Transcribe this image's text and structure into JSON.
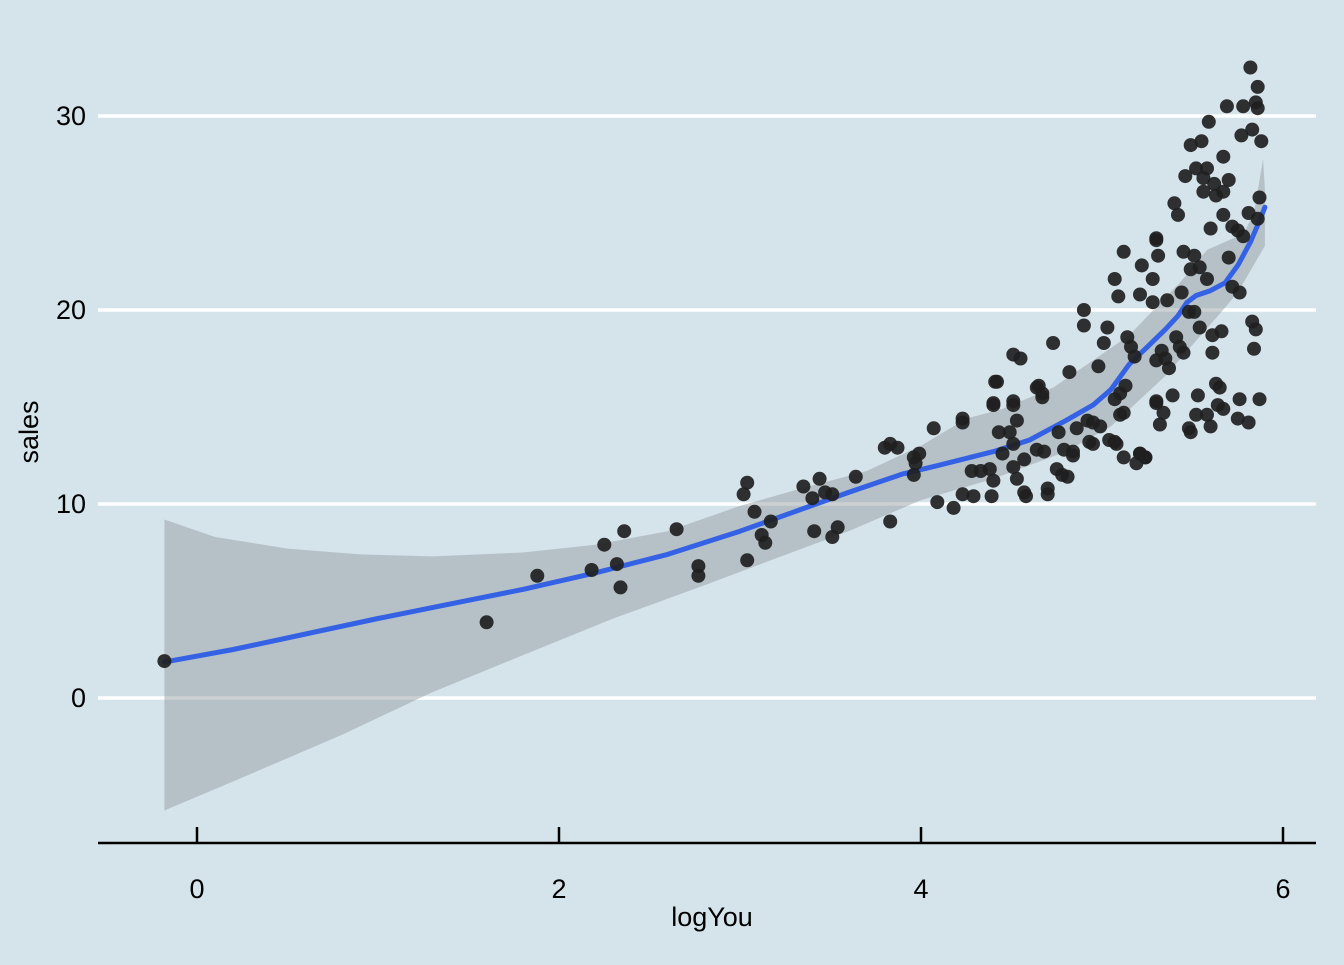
{
  "chart_data": {
    "type": "scatter",
    "title": "",
    "xlabel": "logYou",
    "ylabel": "sales",
    "x_ticks": [
      0,
      2,
      4,
      6
    ],
    "y_ticks": [
      0,
      10,
      20,
      30
    ],
    "xlim": [
      -0.55,
      6.18
    ],
    "ylim": [
      -7.5,
      34.95
    ],
    "grid": "horizontal-white",
    "legend": "none",
    "colors": {
      "background": "#d5e4eb",
      "gridline": "#ffffff",
      "ribbon": "rgba(145,150,155,0.45)",
      "smooth_line": "#3562e4",
      "point": "#1f1f1f",
      "axis": "#000000"
    },
    "smooth_line": [
      [
        -0.18,
        1.85
      ],
      [
        0.2,
        2.5
      ],
      [
        0.6,
        3.3
      ],
      [
        1.0,
        4.1
      ],
      [
        1.4,
        4.85
      ],
      [
        1.8,
        5.6
      ],
      [
        2.2,
        6.45
      ],
      [
        2.6,
        7.4
      ],
      [
        3.0,
        8.6
      ],
      [
        3.3,
        9.6
      ],
      [
        3.6,
        10.6
      ],
      [
        3.9,
        11.55
      ],
      [
        4.1,
        12.0
      ],
      [
        4.4,
        12.7
      ],
      [
        4.6,
        13.3
      ],
      [
        4.8,
        14.3
      ],
      [
        4.95,
        15.1
      ],
      [
        5.05,
        15.9
      ],
      [
        5.15,
        17.2
      ],
      [
        5.25,
        18.1
      ],
      [
        5.35,
        19.0
      ],
      [
        5.42,
        19.7
      ],
      [
        5.47,
        20.4
      ],
      [
        5.52,
        20.75
      ],
      [
        5.6,
        21.0
      ],
      [
        5.68,
        21.4
      ],
      [
        5.75,
        22.3
      ],
      [
        5.82,
        23.5
      ],
      [
        5.87,
        24.6
      ],
      [
        5.9,
        25.3
      ]
    ],
    "ribbon_upper": [
      [
        -0.18,
        9.2
      ],
      [
        0.1,
        8.3
      ],
      [
        0.5,
        7.7
      ],
      [
        0.9,
        7.4
      ],
      [
        1.3,
        7.3
      ],
      [
        1.8,
        7.5
      ],
      [
        2.2,
        7.9
      ],
      [
        2.6,
        8.6
      ],
      [
        3.0,
        9.9
      ],
      [
        3.3,
        10.7
      ],
      [
        3.7,
        11.7
      ],
      [
        4.0,
        13.0
      ],
      [
        4.25,
        14.4
      ],
      [
        4.45,
        14.9
      ],
      [
        4.73,
        16.0
      ],
      [
        4.95,
        17.4
      ],
      [
        5.15,
        18.7
      ],
      [
        5.43,
        21.4
      ],
      [
        5.58,
        23.1
      ],
      [
        5.7,
        23.6
      ],
      [
        5.78,
        23.9
      ],
      [
        5.84,
        25.0
      ],
      [
        5.89,
        27.8
      ],
      [
        5.9,
        26.2
      ]
    ],
    "ribbon_lower": [
      [
        -0.18,
        -5.8
      ],
      [
        0.3,
        -3.9
      ],
      [
        0.8,
        -1.9
      ],
      [
        1.3,
        0.3
      ],
      [
        1.8,
        2.2
      ],
      [
        2.3,
        4.1
      ],
      [
        2.8,
        5.8
      ],
      [
        3.2,
        7.2
      ],
      [
        3.6,
        8.6
      ],
      [
        4.0,
        10.2
      ],
      [
        4.4,
        11.3
      ],
      [
        4.8,
        12.7
      ],
      [
        5.05,
        14.0
      ],
      [
        5.2,
        15.3
      ],
      [
        5.35,
        16.6
      ],
      [
        5.5,
        18.2
      ],
      [
        5.65,
        19.8
      ],
      [
        5.75,
        20.9
      ],
      [
        5.85,
        22.5
      ],
      [
        5.9,
        23.3
      ]
    ],
    "points": [
      [
        -0.18,
        1.9
      ],
      [
        1.6,
        3.9
      ],
      [
        1.88,
        6.3
      ],
      [
        2.18,
        6.6
      ],
      [
        2.25,
        7.9
      ],
      [
        2.32,
        6.9
      ],
      [
        2.36,
        8.6
      ],
      [
        2.34,
        5.7
      ],
      [
        2.65,
        8.7
      ],
      [
        2.77,
        6.8
      ],
      [
        2.77,
        6.3
      ],
      [
        3.04,
        11.1
      ],
      [
        3.02,
        10.5
      ],
      [
        3.08,
        9.6
      ],
      [
        3.04,
        7.1
      ],
      [
        3.12,
        8.4
      ],
      [
        3.14,
        8.0
      ],
      [
        3.17,
        9.1
      ],
      [
        3.35,
        10.9
      ],
      [
        3.44,
        11.3
      ],
      [
        3.4,
        10.3
      ],
      [
        3.47,
        10.6
      ],
      [
        3.51,
        10.5
      ],
      [
        3.41,
        8.6
      ],
      [
        3.51,
        8.3
      ],
      [
        3.54,
        8.8
      ],
      [
        3.64,
        11.4
      ],
      [
        3.8,
        12.9
      ],
      [
        3.83,
        13.1
      ],
      [
        3.87,
        12.9
      ],
      [
        3.96,
        12.4
      ],
      [
        3.99,
        12.6
      ],
      [
        3.97,
        12.1
      ],
      [
        3.96,
        11.5
      ],
      [
        3.83,
        9.1
      ],
      [
        4.07,
        13.9
      ],
      [
        4.09,
        10.1
      ],
      [
        4.18,
        9.8
      ],
      [
        4.23,
        14.2
      ],
      [
        4.23,
        10.5
      ],
      [
        4.29,
        10.4
      ],
      [
        4.41,
        16.3
      ],
      [
        4.4,
        15.1
      ],
      [
        4.43,
        13.7
      ],
      [
        4.45,
        12.6
      ],
      [
        4.28,
        11.7
      ],
      [
        4.33,
        11.7
      ],
      [
        4.38,
        11.8
      ],
      [
        4.4,
        11.2
      ],
      [
        4.39,
        10.4
      ],
      [
        4.49,
        13.7
      ],
      [
        4.51,
        13.1
      ],
      [
        4.64,
        16.0
      ],
      [
        4.67,
        15.5
      ],
      [
        4.53,
        14.3
      ],
      [
        4.51,
        11.9
      ],
      [
        4.53,
        11.3
      ],
      [
        4.57,
        10.6
      ],
      [
        4.58,
        10.4
      ],
      [
        4.7,
        10.5
      ],
      [
        4.7,
        10.8
      ],
      [
        4.75,
        11.8
      ],
      [
        4.78,
        11.5
      ],
      [
        4.81,
        11.4
      ],
      [
        4.76,
        13.7
      ],
      [
        4.64,
        12.8
      ],
      [
        4.68,
        12.7
      ],
      [
        4.79,
        12.8
      ],
      [
        4.57,
        12.3
      ],
      [
        4.86,
        13.9
      ],
      [
        4.92,
        14.3
      ],
      [
        4.95,
        14.2
      ],
      [
        4.99,
        14.0
      ],
      [
        4.84,
        12.7
      ],
      [
        4.84,
        12.5
      ],
      [
        4.93,
        13.2
      ],
      [
        4.95,
        13.1
      ],
      [
        5.04,
        13.3
      ],
      [
        5.07,
        13.2
      ],
      [
        5.08,
        13.1
      ],
      [
        5.1,
        14.6
      ],
      [
        5.12,
        12.4
      ],
      [
        5.19,
        12.1
      ],
      [
        5.21,
        12.6
      ],
      [
        5.24,
        12.4
      ],
      [
        5.12,
        23.0
      ],
      [
        5.3,
        23.6
      ],
      [
        5.31,
        22.8
      ],
      [
        5.22,
        22.3
      ],
      [
        5.07,
        21.6
      ],
      [
        5.28,
        21.6
      ],
      [
        5.09,
        20.7
      ],
      [
        5.21,
        20.8
      ],
      [
        5.28,
        20.4
      ],
      [
        4.9,
        20.0
      ],
      [
        4.9,
        19.2
      ],
      [
        5.03,
        19.1
      ],
      [
        5.01,
        18.3
      ],
      [
        4.73,
        18.3
      ],
      [
        5.14,
        18.6
      ],
      [
        5.16,
        18.1
      ],
      [
        5.18,
        17.6
      ],
      [
        4.51,
        17.7
      ],
      [
        4.55,
        17.5
      ],
      [
        4.82,
        16.8
      ],
      [
        4.42,
        16.3
      ],
      [
        4.98,
        17.1
      ],
      [
        5.13,
        16.1
      ],
      [
        5.1,
        15.7
      ],
      [
        5.07,
        15.4
      ],
      [
        4.65,
        16.1
      ],
      [
        4.67,
        15.7
      ],
      [
        4.4,
        15.2
      ],
      [
        4.51,
        15.3
      ],
      [
        5.3,
        15.3
      ],
      [
        5.12,
        14.7
      ],
      [
        4.23,
        14.4
      ],
      [
        4.51,
        15.1
      ],
      [
        5.82,
        32.5
      ],
      [
        5.86,
        31.5
      ],
      [
        5.69,
        30.5
      ],
      [
        5.78,
        30.5
      ],
      [
        5.85,
        30.7
      ],
      [
        5.86,
        30.4
      ],
      [
        5.59,
        29.7
      ],
      [
        5.83,
        29.3
      ],
      [
        5.77,
        29.0
      ],
      [
        5.49,
        28.5
      ],
      [
        5.55,
        28.7
      ],
      [
        5.88,
        28.7
      ],
      [
        5.67,
        27.9
      ],
      [
        5.52,
        27.3
      ],
      [
        5.58,
        27.3
      ],
      [
        5.46,
        26.9
      ],
      [
        5.56,
        26.8
      ],
      [
        5.62,
        26.5
      ],
      [
        5.7,
        26.7
      ],
      [
        5.56,
        26.1
      ],
      [
        5.63,
        25.9
      ],
      [
        5.67,
        26.1
      ],
      [
        5.4,
        25.5
      ],
      [
        5.42,
        24.9
      ],
      [
        5.87,
        25.8
      ],
      [
        5.81,
        25.0
      ],
      [
        5.86,
        24.7
      ],
      [
        5.75,
        24.1
      ],
      [
        5.67,
        24.9
      ],
      [
        5.6,
        24.2
      ],
      [
        5.72,
        24.3
      ],
      [
        5.3,
        23.7
      ],
      [
        5.78,
        23.8
      ],
      [
        5.45,
        23.0
      ],
      [
        5.51,
        22.8
      ],
      [
        5.49,
        22.1
      ],
      [
        5.54,
        22.2
      ],
      [
        5.58,
        21.6
      ],
      [
        5.7,
        22.7
      ],
      [
        5.36,
        20.5
      ],
      [
        5.44,
        20.9
      ],
      [
        5.48,
        19.9
      ],
      [
        5.51,
        19.9
      ],
      [
        5.72,
        21.2
      ],
      [
        5.76,
        20.9
      ],
      [
        5.54,
        19.1
      ],
      [
        5.41,
        18.6
      ],
      [
        5.43,
        18.1
      ],
      [
        5.45,
        17.8
      ],
      [
        5.61,
        18.7
      ],
      [
        5.66,
        18.9
      ],
      [
        5.83,
        19.4
      ],
      [
        5.85,
        19.0
      ],
      [
        5.61,
        17.8
      ],
      [
        5.84,
        18.0
      ],
      [
        5.33,
        17.9
      ],
      [
        5.35,
        17.5
      ],
      [
        5.3,
        17.4
      ],
      [
        5.37,
        17.0
      ],
      [
        5.63,
        16.2
      ],
      [
        5.65,
        16.0
      ],
      [
        5.39,
        15.6
      ],
      [
        5.3,
        15.2
      ],
      [
        5.34,
        14.7
      ],
      [
        5.53,
        15.6
      ],
      [
        5.64,
        15.1
      ],
      [
        5.67,
        14.9
      ],
      [
        5.52,
        14.6
      ],
      [
        5.58,
        14.6
      ],
      [
        5.76,
        15.4
      ],
      [
        5.87,
        15.4
      ],
      [
        5.75,
        14.4
      ],
      [
        5.81,
        14.2
      ],
      [
        5.32,
        14.1
      ],
      [
        5.48,
        13.9
      ],
      [
        5.49,
        13.7
      ],
      [
        5.6,
        14.0
      ],
      [
        5.21,
        12.6
      ],
      [
        5.24,
        12.4
      ]
    ]
  }
}
